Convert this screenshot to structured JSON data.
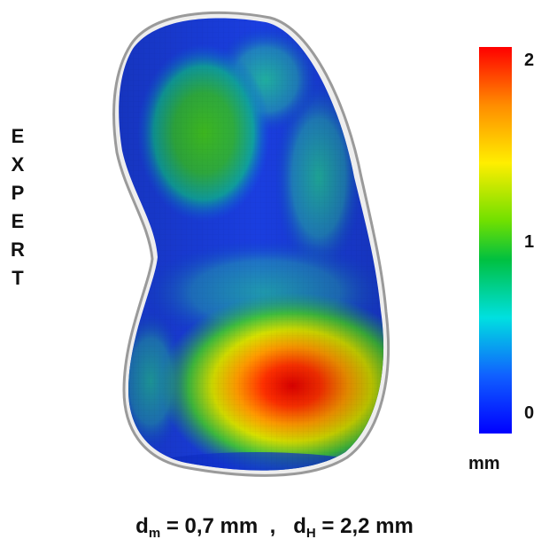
{
  "label": {
    "letters": [
      "E",
      "X",
      "P",
      "E",
      "R",
      "T"
    ]
  },
  "colorbar": {
    "unit": "mm",
    "tick_max": "2",
    "tick_mid": "1",
    "tick_min": "0",
    "stops": [
      "#ff0000",
      "#ff8c00",
      "#ffee00",
      "#70e000",
      "#00c040",
      "#00e0e0",
      "#1060ff",
      "#0000ff"
    ]
  },
  "caption": {
    "d": "d",
    "sub_m": "m",
    "part1": " = 0,7 mm  ,   ",
    "sub_h": "H",
    "part2": " = 2,2 mm"
  }
}
